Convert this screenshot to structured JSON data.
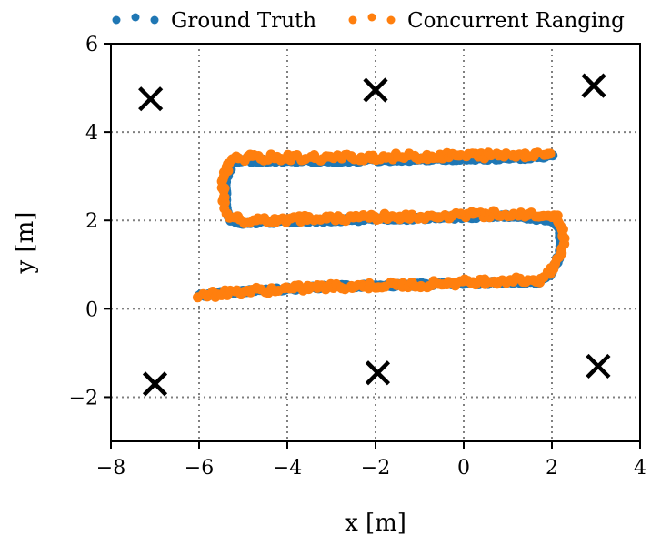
{
  "chart_data": {
    "type": "scatter",
    "xlabel": "x [m]",
    "ylabel": "y [m]",
    "xlim": [
      -8,
      4
    ],
    "ylim": [
      -3,
      6
    ],
    "xticks": [
      -8,
      -6,
      -4,
      -2,
      0,
      2,
      4
    ],
    "xtick_labels": [
      "−8",
      "−6",
      "−4",
      "−2",
      "0",
      "2",
      "4"
    ],
    "yticks": [
      -2,
      0,
      2,
      4,
      6
    ],
    "ytick_labels": [
      "−2",
      "0",
      "2",
      "4",
      "6"
    ],
    "grid": true,
    "legend": {
      "placement": "top, above plot",
      "entries": [
        {
          "label": "Ground Truth",
          "color": "#1f77b4"
        },
        {
          "label": "Concurrent Ranging",
          "color": "#ff7f0e"
        }
      ]
    },
    "anchors": {
      "marker": "x",
      "color": "#000000",
      "points": [
        [
          -7.1,
          4.75
        ],
        [
          -2.0,
          4.95
        ],
        [
          2.95,
          5.05
        ],
        [
          -7.0,
          -1.7
        ],
        [
          -1.95,
          -1.45
        ],
        [
          3.05,
          -1.3
        ]
      ]
    },
    "series": [
      {
        "name": "Ground Truth",
        "color": "#1f77b4",
        "path": [
          [
            -6.0,
            0.3
          ],
          [
            -5.0,
            0.4
          ],
          [
            -3.0,
            0.5
          ],
          [
            -1.0,
            0.55
          ],
          [
            1.0,
            0.6
          ],
          [
            1.7,
            0.6
          ],
          [
            2.0,
            0.8
          ],
          [
            2.2,
            1.3
          ],
          [
            2.2,
            1.8
          ],
          [
            2.0,
            2.0
          ],
          [
            1.0,
            2.1
          ],
          [
            -1.0,
            2.05
          ],
          [
            -3.0,
            2.0
          ],
          [
            -5.0,
            1.95
          ],
          [
            -5.3,
            2.0
          ],
          [
            -5.4,
            2.3
          ],
          [
            -5.4,
            2.9
          ],
          [
            -5.25,
            3.3
          ],
          [
            -5.0,
            3.35
          ],
          [
            -3.0,
            3.35
          ],
          [
            -1.0,
            3.38
          ],
          [
            1.0,
            3.4
          ],
          [
            2.0,
            3.45
          ]
        ]
      },
      {
        "name": "Concurrent Ranging",
        "color": "#ff7f0e",
        "path": [
          [
            -6.0,
            0.3
          ],
          [
            -5.0,
            0.4
          ],
          [
            -3.0,
            0.5
          ],
          [
            -1.0,
            0.55
          ],
          [
            1.0,
            0.65
          ],
          [
            1.7,
            0.65
          ],
          [
            2.0,
            0.85
          ],
          [
            2.25,
            1.3
          ],
          [
            2.25,
            1.85
          ],
          [
            2.05,
            2.1
          ],
          [
            1.0,
            2.15
          ],
          [
            -1.0,
            2.1
          ],
          [
            -3.0,
            2.05
          ],
          [
            -5.0,
            2.0
          ],
          [
            -5.35,
            2.1
          ],
          [
            -5.45,
            2.4
          ],
          [
            -5.45,
            2.9
          ],
          [
            -5.3,
            3.35
          ],
          [
            -5.0,
            3.42
          ],
          [
            -3.0,
            3.42
          ],
          [
            -1.0,
            3.45
          ],
          [
            1.0,
            3.48
          ],
          [
            2.0,
            3.52
          ]
        ]
      }
    ]
  }
}
